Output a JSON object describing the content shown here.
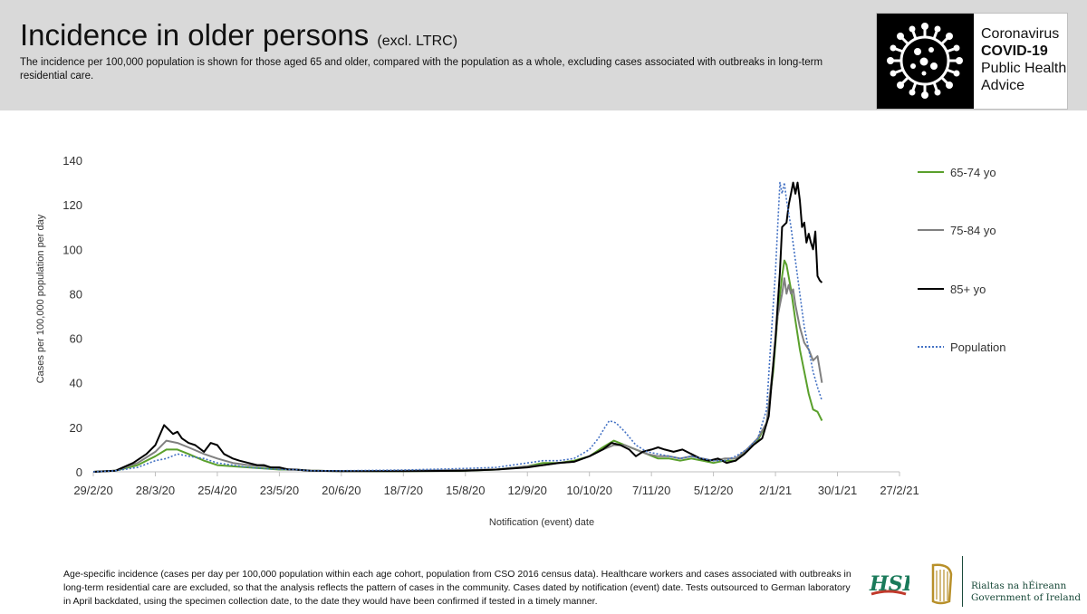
{
  "header": {
    "title": "Incidence in older persons",
    "title_sub": "(excl. LTRC)",
    "subtitle": "The incidence per 100,000 population is shown for those aged 65 and older, compared with the population as a whole, excluding cases associated with outbreaks in long-term residential care."
  },
  "badge": {
    "line1": "Coronavirus",
    "line2": "COVID-19",
    "line3": "Public Health",
    "line4": "Advice",
    "icon": "virus-icon"
  },
  "chart_data": {
    "type": "line",
    "title": "",
    "xlabel": "Notification (event) date",
    "ylabel": "Cases per 100,000 population per day",
    "ylim": [
      0,
      140
    ],
    "yticks": [
      "0",
      "20",
      "40",
      "60",
      "80",
      "100",
      "120",
      "140"
    ],
    "xrange_days": [
      0,
      364
    ],
    "xticks": [
      {
        "label": "29/2/20",
        "day": 0
      },
      {
        "label": "28/3/20",
        "day": 28
      },
      {
        "label": "25/4/20",
        "day": 56
      },
      {
        "label": "23/5/20",
        "day": 84
      },
      {
        "label": "20/6/20",
        "day": 112
      },
      {
        "label": "18/7/20",
        "day": 140
      },
      {
        "label": "15/8/20",
        "day": 168
      },
      {
        "label": "12/9/20",
        "day": 196
      },
      {
        "label": "10/10/20",
        "day": 224
      },
      {
        "label": "7/11/20",
        "day": 252
      },
      {
        "label": "5/12/20",
        "day": 280
      },
      {
        "label": "2/1/21",
        "day": 308
      },
      {
        "label": "30/1/21",
        "day": 336
      },
      {
        "label": "27/2/21",
        "day": 364
      }
    ],
    "legend_position": "right",
    "series": [
      {
        "name": "65-74 yo",
        "color": "#5aa02c",
        "style": "solid",
        "points": [
          [
            0,
            0
          ],
          [
            10,
            0.5
          ],
          [
            20,
            3
          ],
          [
            28,
            7
          ],
          [
            33,
            10
          ],
          [
            38,
            10
          ],
          [
            43,
            8
          ],
          [
            50,
            5
          ],
          [
            56,
            3
          ],
          [
            63,
            2.5
          ],
          [
            70,
            2
          ],
          [
            77,
            1.5
          ],
          [
            84,
            1
          ],
          [
            91,
            1
          ],
          [
            98,
            0.5
          ],
          [
            112,
            0.3
          ],
          [
            140,
            0.3
          ],
          [
            168,
            0.5
          ],
          [
            182,
            1
          ],
          [
            196,
            2.5
          ],
          [
            203,
            4
          ],
          [
            210,
            4
          ],
          [
            217,
            5
          ],
          [
            224,
            7
          ],
          [
            230,
            11
          ],
          [
            235,
            14
          ],
          [
            240,
            12
          ],
          [
            245,
            10
          ],
          [
            250,
            8
          ],
          [
            255,
            6
          ],
          [
            260,
            6
          ],
          [
            265,
            5
          ],
          [
            270,
            6
          ],
          [
            275,
            5
          ],
          [
            280,
            4
          ],
          [
            285,
            5
          ],
          [
            290,
            5
          ],
          [
            295,
            9
          ],
          [
            300,
            14
          ],
          [
            304,
            22
          ],
          [
            307,
            45
          ],
          [
            309,
            70
          ],
          [
            311,
            88
          ],
          [
            312,
            95
          ],
          [
            313,
            93
          ],
          [
            315,
            82
          ],
          [
            317,
            68
          ],
          [
            319,
            55
          ],
          [
            321,
            45
          ],
          [
            323,
            35
          ],
          [
            325,
            28
          ],
          [
            327,
            27
          ],
          [
            329,
            23
          ]
        ]
      },
      {
        "name": "75-84 yo",
        "color": "#808080",
        "style": "solid",
        "points": [
          [
            0,
            0
          ],
          [
            10,
            0.5
          ],
          [
            20,
            4
          ],
          [
            28,
            9
          ],
          [
            33,
            14
          ],
          [
            38,
            13
          ],
          [
            43,
            11
          ],
          [
            50,
            8
          ],
          [
            56,
            6
          ],
          [
            63,
            4
          ],
          [
            70,
            3
          ],
          [
            77,
            2.5
          ],
          [
            84,
            1.5
          ],
          [
            91,
            1
          ],
          [
            98,
            0.5
          ],
          [
            112,
            0.3
          ],
          [
            140,
            0.5
          ],
          [
            168,
            0.8
          ],
          [
            182,
            1
          ],
          [
            196,
            2.5
          ],
          [
            203,
            3
          ],
          [
            210,
            4
          ],
          [
            217,
            4.5
          ],
          [
            224,
            7
          ],
          [
            230,
            10
          ],
          [
            235,
            12
          ],
          [
            240,
            12
          ],
          [
            245,
            10
          ],
          [
            250,
            8
          ],
          [
            255,
            7
          ],
          [
            260,
            7
          ],
          [
            265,
            6
          ],
          [
            270,
            7
          ],
          [
            275,
            6
          ],
          [
            280,
            5
          ],
          [
            285,
            6
          ],
          [
            290,
            6
          ],
          [
            295,
            10
          ],
          [
            300,
            15
          ],
          [
            304,
            22
          ],
          [
            307,
            48
          ],
          [
            309,
            70
          ],
          [
            311,
            80
          ],
          [
            312,
            87
          ],
          [
            313,
            80
          ],
          [
            314,
            84
          ],
          [
            315,
            80
          ],
          [
            316,
            82
          ],
          [
            317,
            75
          ],
          [
            319,
            65
          ],
          [
            321,
            58
          ],
          [
            323,
            55
          ],
          [
            325,
            50
          ],
          [
            327,
            52
          ],
          [
            329,
            40
          ]
        ]
      },
      {
        "name": "85+ yo",
        "color": "#000000",
        "style": "solid",
        "points": [
          [
            0,
            0
          ],
          [
            10,
            0.5
          ],
          [
            18,
            4
          ],
          [
            24,
            8
          ],
          [
            28,
            12
          ],
          [
            32,
            21
          ],
          [
            34,
            19
          ],
          [
            36,
            17
          ],
          [
            38,
            18
          ],
          [
            40,
            15
          ],
          [
            43,
            13
          ],
          [
            46,
            12
          ],
          [
            50,
            9
          ],
          [
            53,
            13
          ],
          [
            56,
            12
          ],
          [
            59,
            8
          ],
          [
            63,
            6
          ],
          [
            66,
            5
          ],
          [
            70,
            4
          ],
          [
            74,
            3
          ],
          [
            77,
            3
          ],
          [
            80,
            2
          ],
          [
            84,
            2
          ],
          [
            88,
            1
          ],
          [
            91,
            1
          ],
          [
            98,
            0.5
          ],
          [
            112,
            0.3
          ],
          [
            140,
            0.3
          ],
          [
            168,
            0.5
          ],
          [
            182,
            1
          ],
          [
            196,
            2
          ],
          [
            203,
            3
          ],
          [
            210,
            4
          ],
          [
            217,
            4.5
          ],
          [
            224,
            7
          ],
          [
            230,
            10
          ],
          [
            234,
            13
          ],
          [
            238,
            12
          ],
          [
            242,
            10
          ],
          [
            245,
            7
          ],
          [
            248,
            9
          ],
          [
            252,
            10
          ],
          [
            255,
            11
          ],
          [
            258,
            10
          ],
          [
            262,
            9
          ],
          [
            266,
            10
          ],
          [
            270,
            8
          ],
          [
            274,
            6
          ],
          [
            278,
            5
          ],
          [
            282,
            6
          ],
          [
            286,
            4
          ],
          [
            290,
            5
          ],
          [
            294,
            8
          ],
          [
            298,
            12
          ],
          [
            302,
            15
          ],
          [
            305,
            25
          ],
          [
            308,
            60
          ],
          [
            310,
            90
          ],
          [
            311,
            110
          ],
          [
            313,
            112
          ],
          [
            314,
            120
          ],
          [
            315,
            125
          ],
          [
            316,
            130
          ],
          [
            317,
            125
          ],
          [
            318,
            130
          ],
          [
            319,
            122
          ],
          [
            320,
            110
          ],
          [
            321,
            112
          ],
          [
            322,
            103
          ],
          [
            323,
            107
          ],
          [
            324,
            103
          ],
          [
            325,
            100
          ],
          [
            326,
            108
          ],
          [
            327,
            88
          ],
          [
            328,
            86
          ],
          [
            329,
            85
          ]
        ]
      },
      {
        "name": "Population",
        "color": "#4472c4",
        "style": "dotted",
        "points": [
          [
            0,
            0
          ],
          [
            10,
            0.5
          ],
          [
            20,
            2
          ],
          [
            28,
            5
          ],
          [
            33,
            6
          ],
          [
            38,
            8
          ],
          [
            43,
            7
          ],
          [
            50,
            6
          ],
          [
            56,
            4
          ],
          [
            63,
            3
          ],
          [
            70,
            2
          ],
          [
            77,
            1.5
          ],
          [
            84,
            1
          ],
          [
            91,
            1
          ],
          [
            98,
            0.5
          ],
          [
            112,
            0.5
          ],
          [
            140,
            0.8
          ],
          [
            168,
            1.5
          ],
          [
            182,
            2
          ],
          [
            196,
            4
          ],
          [
            203,
            5
          ],
          [
            210,
            5
          ],
          [
            217,
            6
          ],
          [
            224,
            10
          ],
          [
            228,
            15
          ],
          [
            231,
            20
          ],
          [
            233,
            23
          ],
          [
            236,
            22
          ],
          [
            240,
            18
          ],
          [
            245,
            12
          ],
          [
            250,
            9
          ],
          [
            255,
            8
          ],
          [
            260,
            7
          ],
          [
            265,
            6
          ],
          [
            270,
            7
          ],
          [
            275,
            6
          ],
          [
            280,
            5
          ],
          [
            285,
            5
          ],
          [
            290,
            7
          ],
          [
            295,
            10
          ],
          [
            300,
            15
          ],
          [
            304,
            28
          ],
          [
            306,
            60
          ],
          [
            308,
            90
          ],
          [
            309,
            110
          ],
          [
            310,
            130
          ],
          [
            311,
            125
          ],
          [
            312,
            130
          ],
          [
            313,
            122
          ],
          [
            315,
            110
          ],
          [
            317,
            95
          ],
          [
            319,
            80
          ],
          [
            321,
            65
          ],
          [
            323,
            55
          ],
          [
            325,
            45
          ],
          [
            327,
            38
          ],
          [
            329,
            32
          ]
        ]
      }
    ]
  },
  "footnote": "Age-specific incidence (cases per day per 100,000 population within each age cohort, population from CSO 2016 census data). Healthcare workers and cases associated with outbreaks in long-term residential care are excluded, so that the analysis reflects the pattern of cases in the community. Cases dated by notification (event) date. Tests outsourced to German laboratory in April backdated, using the specimen collection date, to the date they would have been confirmed if tested in a timely manner.",
  "logos": {
    "hse": "HSE",
    "govt_line1": "Rialtas na hÉireann",
    "govt_line2": "Government of Ireland"
  }
}
